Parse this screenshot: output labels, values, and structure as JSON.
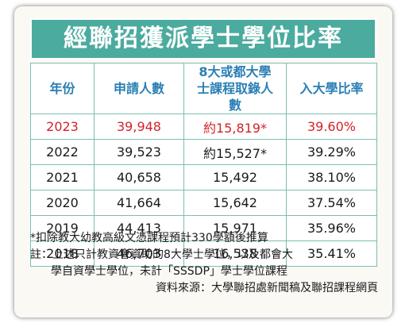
{
  "title": "經聯招獲派學士學位比率",
  "table": {
    "headers": [
      "年份",
      "申請人數",
      "8大或都大學士課程取錄人數",
      "入大學比率"
    ],
    "rows": [
      {
        "year": "2023",
        "applicants": "39,948",
        "admitted": "約15,819*",
        "rate": "39.60%",
        "highlight": true
      },
      {
        "year": "2022",
        "applicants": "39,523",
        "admitted": "約15,527*",
        "rate": "39.29%",
        "highlight": false
      },
      {
        "year": "2021",
        "applicants": "40,658",
        "admitted": "15,492",
        "rate": "38.10%",
        "highlight": false
      },
      {
        "year": "2020",
        "applicants": "41,664",
        "admitted": "15,642",
        "rate": "37.54%",
        "highlight": false
      },
      {
        "year": "2019",
        "applicants": "44,413",
        "admitted": "15,971",
        "rate": "35.96%",
        "highlight": false
      },
      {
        "year": "2018",
        "applicants": "46,703",
        "admitted": "16,538",
        "rate": "35.41%",
        "highlight": false
      }
    ]
  },
  "notes": {
    "footnote": "*扣除教大幼教高級文憑課程預計330學額後推算",
    "remark_line1": "註：上述只計教資會資助的8大學士學位，以及都會大",
    "remark_line2": "學自資學士學位，未計「SSSDP」學士學位課程",
    "source": "資料來源：大學聯招處新聞稿及聯招課程網頁"
  },
  "colors": {
    "title_bg": "#4bab9e",
    "header_text": "#2a7fb4",
    "highlight_text": "#d2232a",
    "grid_line": "#7cbdb3",
    "card_bg": "#fbf9f4"
  }
}
